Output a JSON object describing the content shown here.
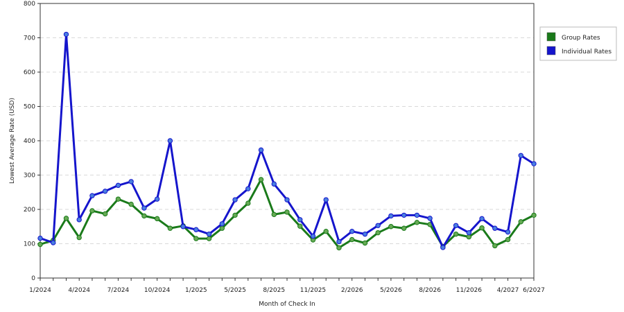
{
  "chart_data": {
    "type": "line",
    "xlabel": "Month of Check In",
    "ylabel": "Lowest Average Rate (USD)",
    "ylim": [
      0,
      800
    ],
    "yticks": [
      0,
      100,
      200,
      300,
      400,
      500,
      600,
      700,
      800
    ],
    "grid": true,
    "legend_position": "right",
    "x_tick_labels": [
      "1/2024",
      "4/2024",
      "7/2024",
      "10/2024",
      "1/2025",
      "5/2025",
      "8/2025",
      "11/2025",
      "2/2026",
      "5/2026",
      "8/2026",
      "11/2026",
      "4/2027",
      "6/2027"
    ],
    "series": [
      {
        "name": "Group Rates",
        "color": "#1a7a1a",
        "marker_color": "#66aa55",
        "values": [
          98,
          110,
          174,
          118,
          196,
          187,
          230,
          215,
          181,
          173,
          145,
          152,
          115,
          115,
          145,
          183,
          218,
          287,
          185,
          192,
          151,
          111,
          136,
          88,
          112,
          102,
          132,
          150,
          145,
          162,
          156,
          92,
          128,
          120,
          146,
          94,
          112,
          164,
          183
        ]
      },
      {
        "name": "Individual Rates",
        "color": "#1515cc",
        "marker_color": "#4a7fe0",
        "values": [
          116,
          103,
          710,
          170,
          240,
          253,
          270,
          281,
          204,
          230,
          400,
          150,
          141,
          128,
          158,
          228,
          260,
          373,
          274,
          228,
          170,
          122,
          228,
          106,
          136,
          128,
          153,
          181,
          183,
          183,
          174,
          89,
          153,
          132,
          173,
          145,
          134,
          357,
          333
        ]
      }
    ]
  }
}
